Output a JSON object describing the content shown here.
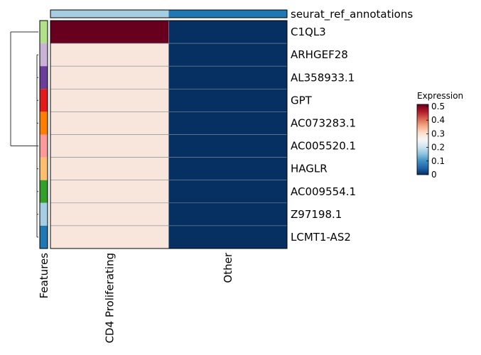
{
  "chart_data": {
    "type": "heatmap",
    "annotation_title": "seurat_ref_annotations",
    "annotation_colors": [
      "#a6cee3",
      "#1f78b4"
    ],
    "x_title": "Features",
    "columns": [
      "CD4 Proliferating",
      "Other"
    ],
    "rows": [
      "C1QL3",
      "ARHGEF28",
      "AL358933.1",
      "GPT",
      "AC073283.1",
      "AC005520.1",
      "HAGLR",
      "AC009554.1",
      "Z97198.1",
      "LCMT1-AS2"
    ],
    "row_colors": [
      "#b2df8a",
      "#cab2d6",
      "#6a3d9a",
      "#e31a1c",
      "#ff7f00",
      "#fb9a99",
      "#fdbf6f",
      "#33a02c",
      "#a6cee3",
      "#1f78b4"
    ],
    "values": [
      [
        0.5,
        0.0
      ],
      [
        0.25,
        0.0
      ],
      [
        0.25,
        0.0
      ],
      [
        0.25,
        0.0
      ],
      [
        0.25,
        0.0
      ],
      [
        0.25,
        0.0
      ],
      [
        0.25,
        0.0
      ],
      [
        0.25,
        0.0
      ],
      [
        0.25,
        0.0
      ],
      [
        0.25,
        0.0
      ]
    ],
    "legend": {
      "title": "Expression",
      "ticks": [
        "0.5",
        "0.4",
        "0.3",
        "0.2",
        "0.1",
        "0"
      ],
      "min": 0,
      "max": 0.5,
      "colors": [
        "#67001f",
        "#b2182b",
        "#d6604d",
        "#f4a582",
        "#fddbc7",
        "#f7f7f7",
        "#d1e5f0",
        "#92c5de",
        "#4393c3",
        "#2166ac",
        "#053061"
      ]
    },
    "cell_colors": {
      "high": "#67001f",
      "mid": "#f8e6dd",
      "low": "#053061"
    }
  }
}
